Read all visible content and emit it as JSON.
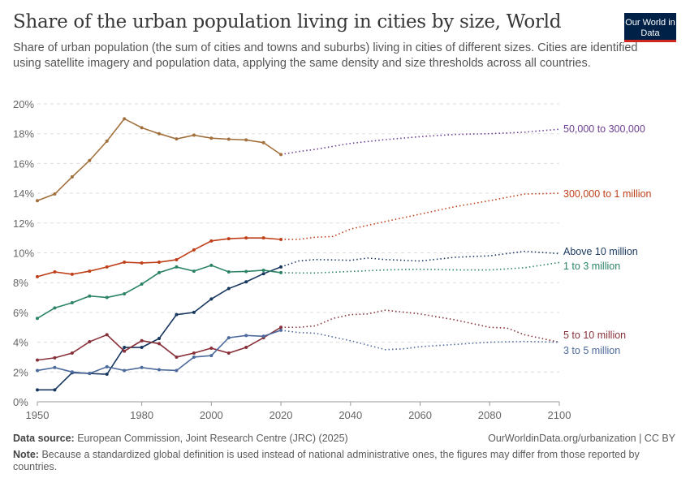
{
  "title": "Share of the urban population living in cities by size, World",
  "subtitle": "Share of urban population (the sum of cities and towns and suburbs) living in cities of different sizes. Cities are identified using satellite imagery and population data, applying the same density and size thresholds across all countries.",
  "logo": "Our World in Data",
  "footer": {
    "source_label": "Data source:",
    "source": "European Commission, Joint Research Centre (JRC) (2025)",
    "url": "OurWorldinData.org/urbanization | CC BY",
    "note_label": "Note:",
    "note": "Because a standardized global definition is used instead of national administrative ones, the figures may differ from those reported by countries."
  },
  "chart_data": {
    "type": "line",
    "xlim": [
      1950,
      2100
    ],
    "ylim": [
      0,
      20
    ],
    "xticks": [
      1950,
      1980,
      2000,
      2020,
      2040,
      2060,
      2080,
      2100
    ],
    "yticks": [
      "0%",
      "2%",
      "4%",
      "6%",
      "8%",
      "10%",
      "12%",
      "14%",
      "16%",
      "18%",
      "20%"
    ],
    "grid": true,
    "note_projection": "dotted lines after 2020",
    "series": [
      {
        "name": "50,000 to 300,000",
        "color": "#a2703c",
        "label_color": "#6d3e91",
        "x": [
          1950,
          1955,
          1960,
          1965,
          1970,
          1975,
          1980,
          1985,
          1990,
          1995,
          2000,
          2005,
          2010,
          2015,
          2020
        ],
        "y": [
          13.5,
          13.95,
          15.1,
          16.2,
          17.5,
          19.0,
          18.4,
          18.0,
          17.65,
          17.9,
          17.7,
          17.63,
          17.58,
          17.4,
          16.6
        ],
        "proj_x": [
          2020,
          2025,
          2030,
          2040,
          2050,
          2060,
          2070,
          2080,
          2090,
          2100
        ],
        "proj_y": [
          16.6,
          16.8,
          16.95,
          17.35,
          17.6,
          17.8,
          17.95,
          18.0,
          18.1,
          18.3
        ]
      },
      {
        "name": "300,000 to 1 million",
        "color": "#c0401a",
        "label_color": "#c0401a",
        "x": [
          1950,
          1955,
          1960,
          1965,
          1970,
          1975,
          1980,
          1985,
          1990,
          1995,
          2000,
          2005,
          2010,
          2015,
          2020
        ],
        "y": [
          8.4,
          8.72,
          8.56,
          8.77,
          9.05,
          9.37,
          9.32,
          9.37,
          9.54,
          10.2,
          10.8,
          10.95,
          11.0,
          11.0,
          10.9
        ],
        "proj_x": [
          2020,
          2025,
          2030,
          2035,
          2040,
          2050,
          2060,
          2070,
          2080,
          2090,
          2100
        ],
        "proj_y": [
          10.9,
          10.9,
          11.05,
          11.1,
          11.6,
          12.1,
          12.6,
          13.1,
          13.5,
          13.95,
          14.0
        ]
      },
      {
        "name": "Above 10 million",
        "color": "#18375f",
        "label_color": "#18375f",
        "x": [
          1950,
          1955,
          1960,
          1965,
          1970,
          1975,
          1980,
          1985,
          1990,
          1995,
          2000,
          2005,
          2010,
          2015,
          2020
        ],
        "y": [
          0.8,
          0.8,
          1.95,
          1.9,
          1.85,
          3.65,
          3.65,
          4.25,
          5.85,
          6.0,
          6.9,
          7.6,
          8.05,
          8.6,
          9.05
        ],
        "proj_x": [
          2020,
          2025,
          2030,
          2040,
          2045,
          2050,
          2060,
          2070,
          2080,
          2090,
          2100
        ],
        "proj_y": [
          9.05,
          9.45,
          9.55,
          9.5,
          9.65,
          9.55,
          9.45,
          9.7,
          9.8,
          10.1,
          9.95
        ]
      },
      {
        "name": "1 to 3 million",
        "color": "#2c8465",
        "label_color": "#2c8465",
        "x": [
          1950,
          1955,
          1960,
          1965,
          1970,
          1975,
          1980,
          1985,
          1990,
          1995,
          2000,
          2005,
          2010,
          2015,
          2020
        ],
        "y": [
          5.6,
          6.3,
          6.65,
          7.1,
          7.0,
          7.25,
          7.9,
          8.67,
          9.05,
          8.77,
          9.16,
          8.72,
          8.75,
          8.83,
          8.67
        ],
        "proj_x": [
          2020,
          2025,
          2030,
          2040,
          2050,
          2060,
          2070,
          2080,
          2090,
          2100
        ],
        "proj_y": [
          8.67,
          8.65,
          8.65,
          8.75,
          8.85,
          8.9,
          8.85,
          8.85,
          9.0,
          9.35
        ]
      },
      {
        "name": "5 to 10 million",
        "color": "#883039",
        "label_color": "#883039",
        "x": [
          1950,
          1955,
          1960,
          1965,
          1970,
          1975,
          1980,
          1985,
          1990,
          1995,
          2000,
          2005,
          2010,
          2015,
          2020
        ],
        "y": [
          2.8,
          2.95,
          3.27,
          4.03,
          4.5,
          3.4,
          4.1,
          3.9,
          3.0,
          3.27,
          3.6,
          3.27,
          3.65,
          4.3,
          5.0
        ],
        "proj_x": [
          2020,
          2025,
          2030,
          2035,
          2040,
          2045,
          2050,
          2060,
          2070,
          2080,
          2085,
          2090,
          2100
        ],
        "proj_y": [
          5.0,
          5.0,
          5.1,
          5.6,
          5.85,
          5.9,
          6.15,
          5.9,
          5.5,
          5.0,
          4.95,
          4.5,
          4.0
        ]
      },
      {
        "name": "3 to 5 million",
        "color": "#4c6a9c",
        "label_color": "#4c6a9c",
        "x": [
          1950,
          1955,
          1960,
          1965,
          1970,
          1975,
          1980,
          1985,
          1990,
          1995,
          2000,
          2005,
          2010,
          2015,
          2020
        ],
        "y": [
          2.1,
          2.3,
          2.0,
          1.9,
          2.35,
          2.1,
          2.3,
          2.15,
          2.1,
          3.0,
          3.1,
          4.3,
          4.45,
          4.4,
          4.8
        ],
        "proj_x": [
          2020,
          2025,
          2030,
          2035,
          2040,
          2045,
          2050,
          2055,
          2060,
          2070,
          2080,
          2090,
          2100
        ],
        "proj_y": [
          4.8,
          4.65,
          4.6,
          4.35,
          4.1,
          3.8,
          3.5,
          3.55,
          3.7,
          3.85,
          4.0,
          4.05,
          4.0
        ]
      }
    ]
  }
}
